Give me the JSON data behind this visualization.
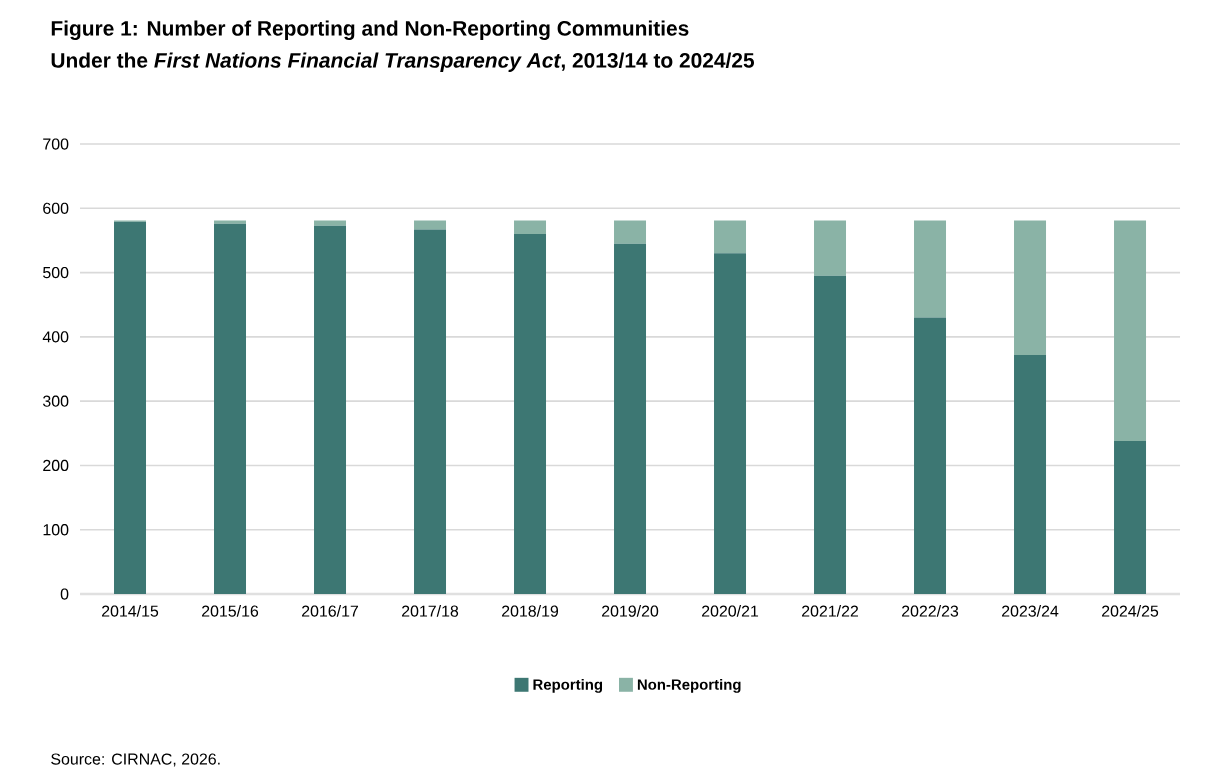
{
  "chart_data": {
    "type": "bar",
    "stacked": true,
    "title": "Figure 1: Number of Reporting and Non-Reporting Communities",
    "subtitle": "Under the *First Nations Financial Transparency Act*, 2013/14 to 2024/25",
    "categories": [
      "2014/15",
      "2015/16",
      "2016/17",
      "2017/18",
      "2018/19",
      "2019/20",
      "2020/21",
      "2021/22",
      "2022/23",
      "2023/24",
      "2024/25"
    ],
    "series": [
      {
        "name": "Reporting",
        "color": "#3d7773",
        "values": [
          579,
          576,
          573,
          567,
          560,
          545,
          530,
          495,
          430,
          372,
          238
        ]
      },
      {
        "name": "Non-Reporting",
        "color": "#8ab3a6",
        "values": [
          2,
          5,
          8,
          14,
          21,
          36,
          51,
          86,
          151,
          209,
          343
        ]
      }
    ],
    "ylim": [
      0,
      700
    ],
    "yticks": [
      0,
      100,
      200,
      300,
      400,
      500,
      600,
      700
    ],
    "grid": "y",
    "legend": "bottom",
    "annotations": [
      "Source: CIRNAC, 2026."
    ]
  }
}
